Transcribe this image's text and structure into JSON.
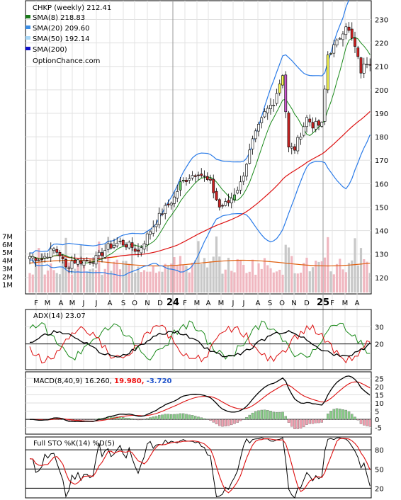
{
  "chart_data": [
    {
      "type": "candlestick",
      "title": "CHKP (weekly) 212.41",
      "source_label": "OptionChance.com",
      "y_ticks": [
        120,
        130,
        140,
        150,
        160,
        170,
        180,
        190,
        200,
        210,
        220,
        230
      ],
      "ylim": [
        113,
        238
      ],
      "volume_ticks": [
        "1M",
        "2M",
        "3M",
        "4M",
        "5M",
        "6M",
        "7M"
      ],
      "x_labels": [
        "F",
        "M",
        "A",
        "M",
        "J",
        "J",
        "A",
        "S",
        "O",
        "N",
        "D",
        "24",
        "F",
        "M",
        "A",
        "M",
        "J",
        "J",
        "A",
        "S",
        "O",
        "N",
        "D",
        "25",
        "F",
        "M",
        "A"
      ],
      "close_anchors": [
        {
          "week": 0,
          "value": 129
        },
        {
          "week": 4,
          "value": 128
        },
        {
          "week": 8,
          "value": 132
        },
        {
          "week": 10,
          "value": 130
        },
        {
          "week": 12,
          "value": 124
        },
        {
          "week": 14,
          "value": 127
        },
        {
          "week": 18,
          "value": 127
        },
        {
          "week": 22,
          "value": 128
        },
        {
          "week": 26,
          "value": 133
        },
        {
          "week": 30,
          "value": 135
        },
        {
          "week": 34,
          "value": 133
        },
        {
          "week": 36,
          "value": 131
        },
        {
          "week": 40,
          "value": 140
        },
        {
          "week": 44,
          "value": 148
        },
        {
          "week": 48,
          "value": 154
        },
        {
          "week": 50,
          "value": 160
        },
        {
          "week": 53,
          "value": 163
        },
        {
          "week": 56,
          "value": 165
        },
        {
          "week": 60,
          "value": 160
        },
        {
          "week": 63,
          "value": 150
        },
        {
          "week": 66,
          "value": 152
        },
        {
          "week": 70,
          "value": 160
        },
        {
          "week": 74,
          "value": 178
        },
        {
          "week": 78,
          "value": 190
        },
        {
          "week": 81,
          "value": 195
        },
        {
          "week": 84,
          "value": 207
        },
        {
          "week": 86,
          "value": 175
        },
        {
          "week": 88,
          "value": 175
        },
        {
          "week": 92,
          "value": 188
        },
        {
          "week": 94,
          "value": 185
        },
        {
          "week": 97,
          "value": 185
        },
        {
          "week": 99,
          "value": 215
        },
        {
          "week": 102,
          "value": 220
        },
        {
          "week": 105,
          "value": 228
        },
        {
          "week": 108,
          "value": 218
        },
        {
          "week": 110,
          "value": 208
        },
        {
          "week": 112,
          "value": 212
        }
      ],
      "legend": [
        {
          "label": "SMA(8) 218.83",
          "color": "#1a7a1a"
        },
        {
          "label": "SMA(20) 209.60",
          "color": "#3a8ee6"
        },
        {
          "label": "SMA(50) 192.14",
          "color": "#a8d8f8"
        },
        {
          "label": "SMA(200)",
          "color": "#1010cc"
        }
      ],
      "colors": {
        "bollinger": "#2a7be8",
        "sma50": "#dd1111",
        "sma8": "#1a8a1a",
        "volume_up": "#f0b7c0",
        "volume_down": "#c8c8c8"
      }
    },
    {
      "type": "line",
      "label": "ADX(14) 23.07",
      "y_ticks": [
        20,
        30
      ],
      "colors": {
        "adx": "#000000",
        "plus_di": "#1a8a1a",
        "minus_di": "#dd1111"
      }
    },
    {
      "type": "line",
      "label_main": "MACD(8,40,9) 16.260,",
      "label_signal": "19.980,",
      "label_hist": "-3.720",
      "y_ticks": [
        -5,
        0,
        5,
        10,
        15,
        20,
        25
      ],
      "colors": {
        "macd": "#000000",
        "signal": "#dd1111",
        "hist_up": "#88cc88",
        "hist_down": "#f0a0b0",
        "label_signal": "#ee1111",
        "label_hist": "#2255cc"
      }
    },
    {
      "type": "line",
      "label": "Full STO %K(14) %D(5)",
      "y_ticks": [
        20,
        50,
        80
      ],
      "colors": {
        "k": "#000000",
        "d": "#dd1111"
      }
    }
  ]
}
